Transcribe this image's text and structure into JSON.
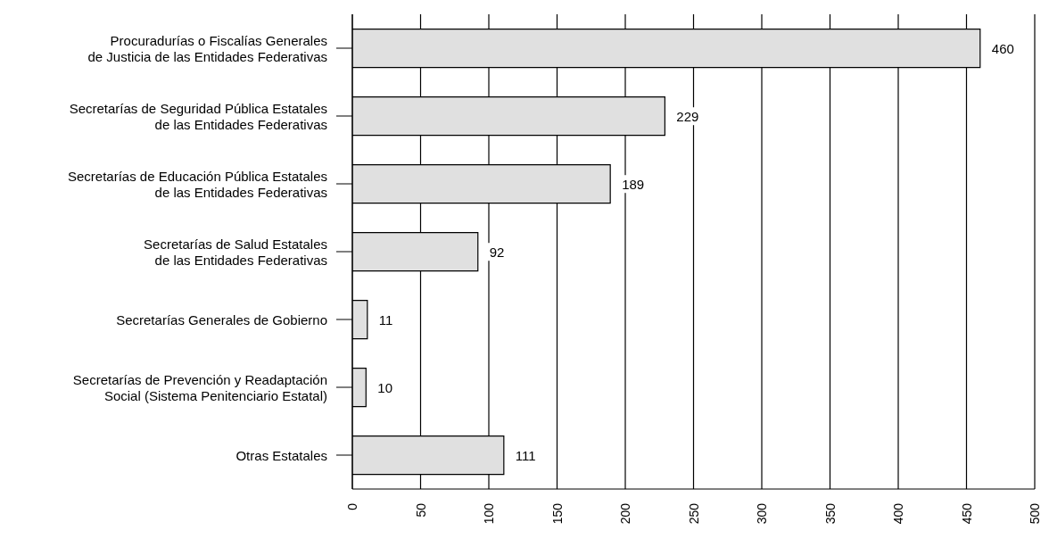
{
  "chart_data": {
    "type": "bar",
    "orientation": "horizontal",
    "categories": [
      "Procuradurías o Fiscalías Generales\nde Justicia de las Entidades Federativas",
      "Secretarías de Seguridad Pública Estatales\nde las Entidades Federativas",
      "Secretarías de Educación Pública Estatales\nde las Entidades Federativas",
      "Secretarías de Salud Estatales\nde las Entidades Federativas",
      "Secretarías Generales de Gobierno",
      "Secretarías de Prevención y Readaptación\nSocial (Sistema Penitenciario Estatal)",
      "Otras Estatales"
    ],
    "values": [
      460,
      229,
      189,
      92,
      11,
      10,
      111
    ],
    "color": "#e0e0e0",
    "xlim": [
      0,
      500
    ],
    "xticks": [
      0,
      50,
      100,
      150,
      200,
      250,
      300,
      350,
      400,
      450,
      500
    ],
    "grid": "x",
    "data_labels": true
  }
}
